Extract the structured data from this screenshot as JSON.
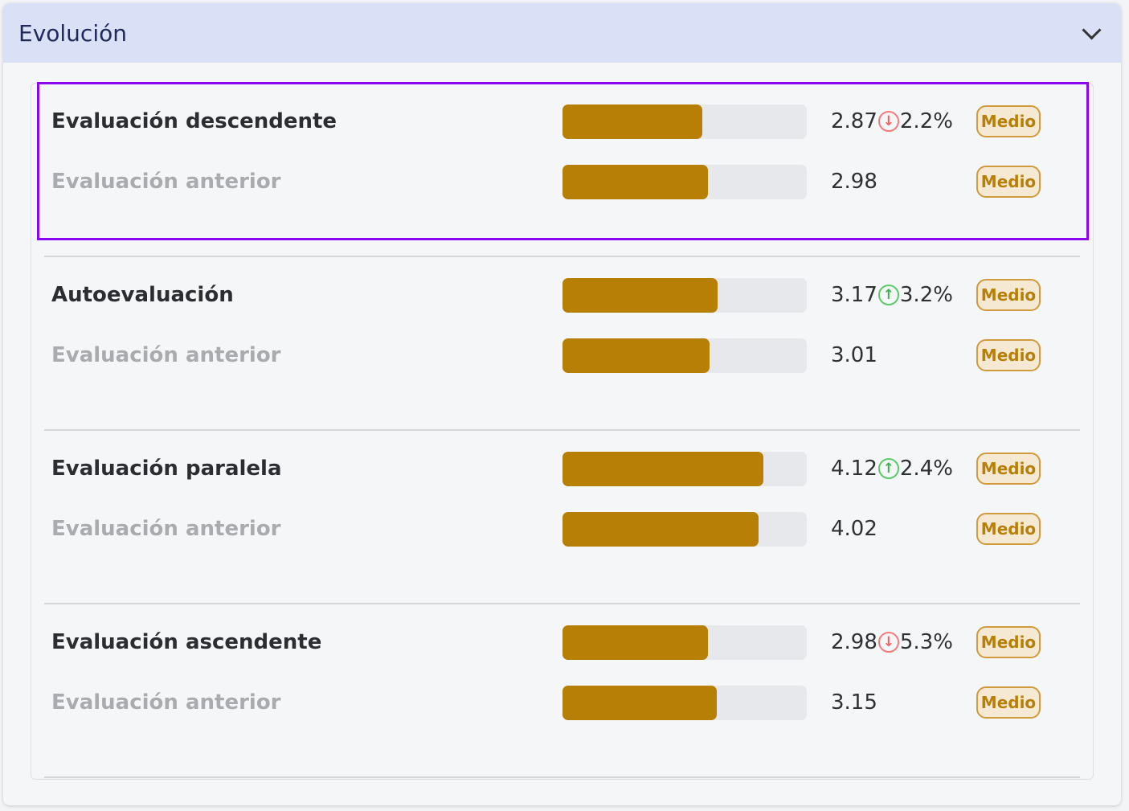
{
  "header": {
    "title": "Evolución",
    "collapse_icon": "chevron-down-icon"
  },
  "scale_max": 5,
  "colors": {
    "bar": "#b77f06",
    "down": "#f26262",
    "up": "#3fb24f",
    "highlight": "#8a05f0"
  },
  "groups": [
    {
      "label": "Evaluación descendente",
      "value": "2.87",
      "numeric": 2.87,
      "trend": "down",
      "change": "2.2%",
      "badge": "Medio",
      "previous": {
        "label": "Evaluación anterior",
        "value": "2.98",
        "numeric": 2.98,
        "badge": "Medio"
      }
    },
    {
      "label": "Autoevaluación",
      "value": "3.17",
      "numeric": 3.17,
      "trend": "up",
      "change": "3.2%",
      "badge": "Medio",
      "previous": {
        "label": "Evaluación anterior",
        "value": "3.01",
        "numeric": 3.01,
        "badge": "Medio"
      }
    },
    {
      "label": "Evaluación paralela",
      "value": "4.12",
      "numeric": 4.12,
      "trend": "up",
      "change": "2.4%",
      "badge": "Medio",
      "previous": {
        "label": "Evaluación anterior",
        "value": "4.02",
        "numeric": 4.02,
        "badge": "Medio"
      }
    },
    {
      "label": "Evaluación ascendente",
      "value": "2.98",
      "numeric": 2.98,
      "trend": "down",
      "change": "5.3%",
      "badge": "Medio",
      "previous": {
        "label": "Evaluación anterior",
        "value": "3.15",
        "numeric": 3.15,
        "badge": "Medio"
      }
    }
  ]
}
